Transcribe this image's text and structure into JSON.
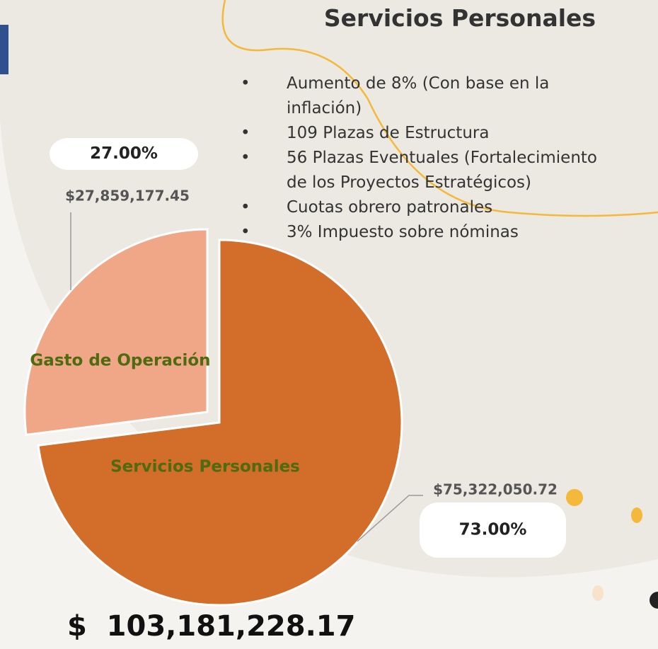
{
  "slide": {
    "title": "Servicios Personales",
    "bullets": [
      "Aumento de 8% (Con base en la inflación)",
      "109 Plazas de Estructura",
      "56 Plazas Eventuales (Fortalecimiento de los Proyectos Estratégicos)",
      "Cuotas obrero patronales",
      "3% Impuesto sobre nóminas"
    ],
    "total": "$  103,181,228.17"
  },
  "chart_data": {
    "type": "pie",
    "categories": [
      "Servicios Personales",
      "Gasto de Operación"
    ],
    "values": [
      73,
      27
    ],
    "value_labels": [
      "73.00%",
      "27.00%"
    ],
    "amounts": [
      75322050.72,
      27859177.45
    ],
    "amount_labels": [
      "$75,322,050.72",
      "$27,859,177.45"
    ],
    "colors": [
      "#d36d2a",
      "#f0a788"
    ],
    "label_color": "#4f6b0f"
  }
}
